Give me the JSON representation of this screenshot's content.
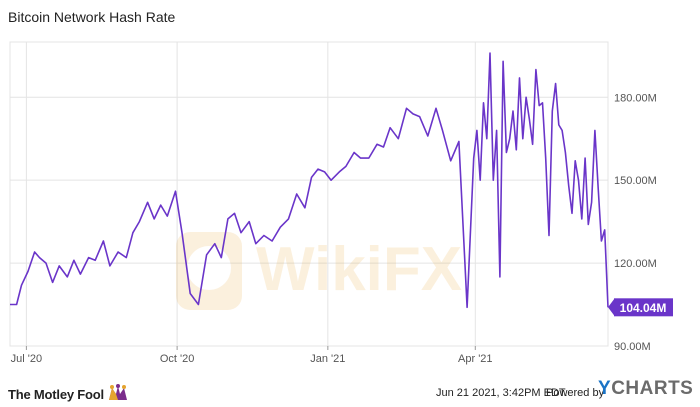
{
  "title": "Bitcoin Network Hash Rate",
  "colors": {
    "line": "#6a35c9",
    "grid": "#e4e4e4",
    "label_bg": "#6a35c9"
  },
  "watermark": "WikiFX",
  "footer": {
    "brand": "The Motley Fool",
    "brand_icon": "jester-hat-icon",
    "timestamp": "Jun 21 2021, 3:42PM EDT.",
    "powered_by": "Powered by",
    "provider": "YCHARTS"
  },
  "chart_data": {
    "type": "line",
    "title": "Bitcoin Network Hash Rate",
    "xlabel": "",
    "ylabel": "",
    "x_ticks": [
      "Jul '20",
      "Oct '20",
      "Jan '21",
      "Apr '21"
    ],
    "y_ticks": [
      "90.00M",
      "120.00M",
      "150.00M",
      "180.00M"
    ],
    "ylim": [
      90,
      200
    ],
    "grid": true,
    "last_value_label": "104.04M",
    "series": [
      {
        "x": [
          "2020-06-21",
          "2020-06-25",
          "2020-06-28",
          "2020-07-02",
          "2020-07-06",
          "2020-07-09",
          "2020-07-13",
          "2020-07-17",
          "2020-07-21",
          "2020-07-26",
          "2020-07-30",
          "2020-08-03",
          "2020-08-08",
          "2020-08-12",
          "2020-08-17",
          "2020-08-21",
          "2020-08-26",
          "2020-08-31",
          "2020-09-04",
          "2020-09-08",
          "2020-09-13",
          "2020-09-17",
          "2020-09-21",
          "2020-09-25",
          "2020-09-30",
          "2020-10-04",
          "2020-10-09",
          "2020-10-14",
          "2020-10-19",
          "2020-10-24",
          "2020-10-28",
          "2020-11-01",
          "2020-11-05",
          "2020-11-09",
          "2020-11-14",
          "2020-11-18",
          "2020-11-23",
          "2020-11-28",
          "2020-12-03",
          "2020-12-08",
          "2020-12-13",
          "2020-12-18",
          "2020-12-22",
          "2020-12-26",
          "2020-12-30",
          "2021-01-03",
          "2021-01-08",
          "2021-01-12",
          "2021-01-17",
          "2021-01-21",
          "2021-01-26",
          "2021-01-31",
          "2021-02-04",
          "2021-02-08",
          "2021-02-13",
          "2021-02-18",
          "2021-02-22",
          "2021-02-26",
          "2021-03-03",
          "2021-03-08",
          "2021-03-12",
          "2021-03-17",
          "2021-03-22",
          "2021-03-27",
          "2021-03-31",
          "2021-04-02",
          "2021-04-04",
          "2021-04-06",
          "2021-04-08",
          "2021-04-10",
          "2021-04-12",
          "2021-04-14",
          "2021-04-16",
          "2021-04-18",
          "2021-04-20",
          "2021-04-22",
          "2021-04-24",
          "2021-04-26",
          "2021-04-28",
          "2021-04-30",
          "2021-05-02",
          "2021-05-04",
          "2021-05-06",
          "2021-05-08",
          "2021-05-10",
          "2021-05-12",
          "2021-05-14",
          "2021-05-16",
          "2021-05-18",
          "2021-05-20",
          "2021-05-22",
          "2021-05-24",
          "2021-05-26",
          "2021-05-28",
          "2021-05-30",
          "2021-06-01",
          "2021-06-03",
          "2021-06-05",
          "2021-06-07",
          "2021-06-09",
          "2021-06-11",
          "2021-06-13",
          "2021-06-15",
          "2021-06-17",
          "2021-06-19",
          "2021-06-21"
        ],
        "y": [
          105,
          105,
          112,
          117,
          124,
          122,
          120,
          113,
          119,
          115,
          121,
          116,
          122,
          121,
          128,
          119,
          124,
          122,
          131,
          135,
          142,
          136,
          141,
          137,
          146,
          131,
          109,
          105,
          123,
          127,
          122,
          136,
          138,
          131,
          135,
          127,
          130,
          128,
          133,
          136,
          145,
          140,
          151,
          154,
          153,
          150,
          153,
          155,
          160,
          158,
          158,
          163,
          162,
          169,
          165,
          176,
          174,
          173,
          166,
          176,
          168,
          157,
          164,
          104,
          158,
          168,
          150,
          178,
          165,
          196,
          150,
          168,
          115,
          193,
          160,
          165,
          175,
          161,
          187,
          165,
          180,
          172,
          163,
          190,
          177,
          178,
          158,
          130,
          175,
          185,
          170,
          168,
          160,
          148,
          138,
          157,
          150,
          136,
          158,
          134,
          142,
          168,
          147,
          128,
          132,
          104
        ]
      }
    ]
  }
}
